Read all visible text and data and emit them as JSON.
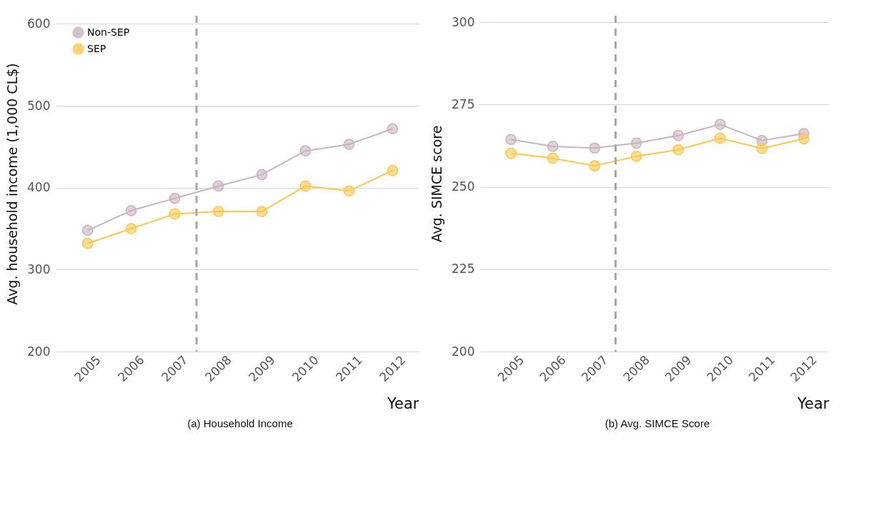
{
  "chart_data": [
    {
      "type": "line",
      "title": "(a) Household Income",
      "xlabel": "Year",
      "ylabel": "Avg. household income (1,000 CL$)",
      "x": [
        2005,
        2006,
        2007,
        2008,
        2009,
        2010,
        2011,
        2012
      ],
      "series": [
        {
          "name": "Non-SEP",
          "color": "#c9b3c2",
          "values": [
            348,
            372,
            387,
            402,
            416,
            445,
            453,
            472
          ]
        },
        {
          "name": "SEP",
          "color": "#ffc74f",
          "values": [
            332,
            350,
            368,
            371,
            371,
            402,
            396,
            421
          ]
        }
      ],
      "xlim": [
        2004.4,
        2012.6
      ],
      "xticks": [
        2005,
        2006,
        2007,
        2008,
        2009,
        2010,
        2011,
        2012
      ],
      "ylim": [
        200,
        610
      ],
      "yticks": [
        200,
        300,
        400,
        500,
        600
      ],
      "ref_lines": [
        {
          "axis": "x",
          "value": 2007.5,
          "color": "#a6a6a6",
          "line_style": "dashed"
        }
      ],
      "grid": "y",
      "legend": "top left",
      "marker": "circle",
      "line_style": "solid"
    },
    {
      "type": "line",
      "title": "(b) Avg. SIMCE Score",
      "xlabel": "Year",
      "ylabel": "Avg. SIMCE score",
      "x": [
        2005,
        2006,
        2007,
        2008,
        2009,
        2010,
        2011,
        2012
      ],
      "series": [
        {
          "color": "#c9b3c2",
          "values": [
            264.4,
            262.3,
            261.8,
            263.3,
            265.6,
            269,
            264.1,
            266.2
          ]
        },
        {
          "color": "#ffc74f",
          "values": [
            260.2,
            258.7,
            256.4,
            259.3,
            261.3,
            264.8,
            261.7,
            264.6
          ]
        }
      ],
      "xlim": [
        2004.4,
        2012.6
      ],
      "xticks": [
        2005,
        2006,
        2007,
        2008,
        2009,
        2010,
        2011,
        2012
      ],
      "ylim": [
        200,
        302
      ],
      "yticks": [
        200,
        225,
        250,
        275,
        300
      ],
      "ref_lines": [
        {
          "axis": "x",
          "value": 2007.5,
          "color": "#a6a6a6",
          "line_style": "dashed"
        }
      ],
      "grid": "y",
      "legend": false,
      "marker": "circle",
      "line_style": "solid"
    }
  ]
}
